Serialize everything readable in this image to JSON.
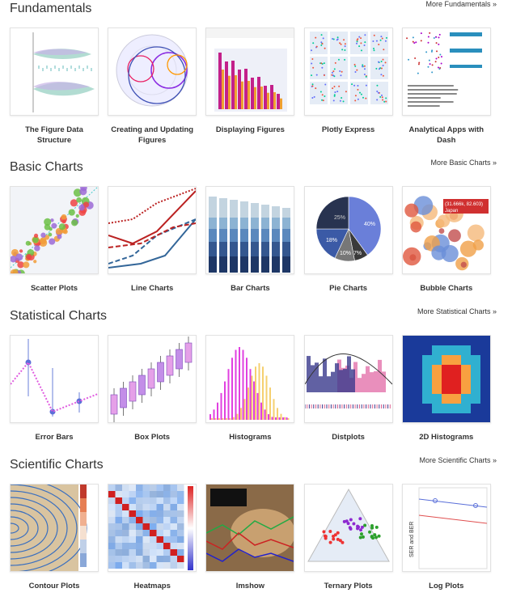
{
  "sections": [
    {
      "title": "Fundamentals",
      "more": "More Fundamentals »",
      "items": [
        {
          "caption": "The Figure Data Structure"
        },
        {
          "caption": "Creating and Updating Figures"
        },
        {
          "caption": "Displaying Figures"
        },
        {
          "caption": "Plotly Express"
        },
        {
          "caption": "Analytical Apps with Dash"
        }
      ]
    },
    {
      "title": "Basic Charts",
      "more": "More Basic Charts »",
      "items": [
        {
          "caption": "Scatter Plots"
        },
        {
          "caption": "Line Charts"
        },
        {
          "caption": "Bar Charts"
        },
        {
          "caption": "Pie Charts",
          "labels": [
            "25%",
            "40%",
            "18%",
            "10%",
            "7%"
          ]
        },
        {
          "caption": "Bubble Charts",
          "tooltip": [
            "(31.666k, 82.603)",
            "Japan"
          ]
        }
      ]
    },
    {
      "title": "Statistical Charts",
      "more": "More Statistical Charts »",
      "items": [
        {
          "caption": "Error Bars"
        },
        {
          "caption": "Box Plots"
        },
        {
          "caption": "Histograms"
        },
        {
          "caption": "Distplots"
        },
        {
          "caption": "2D Histograms"
        }
      ]
    },
    {
      "title": "Scientific Charts",
      "more": "More Scientific Charts »",
      "items": [
        {
          "caption": "Contour Plots"
        },
        {
          "caption": "Heatmaps"
        },
        {
          "caption": "Imshow"
        },
        {
          "caption": "Ternary Plots"
        },
        {
          "caption": "Log Plots",
          "axis_label": "SER and BER"
        }
      ]
    }
  ]
}
